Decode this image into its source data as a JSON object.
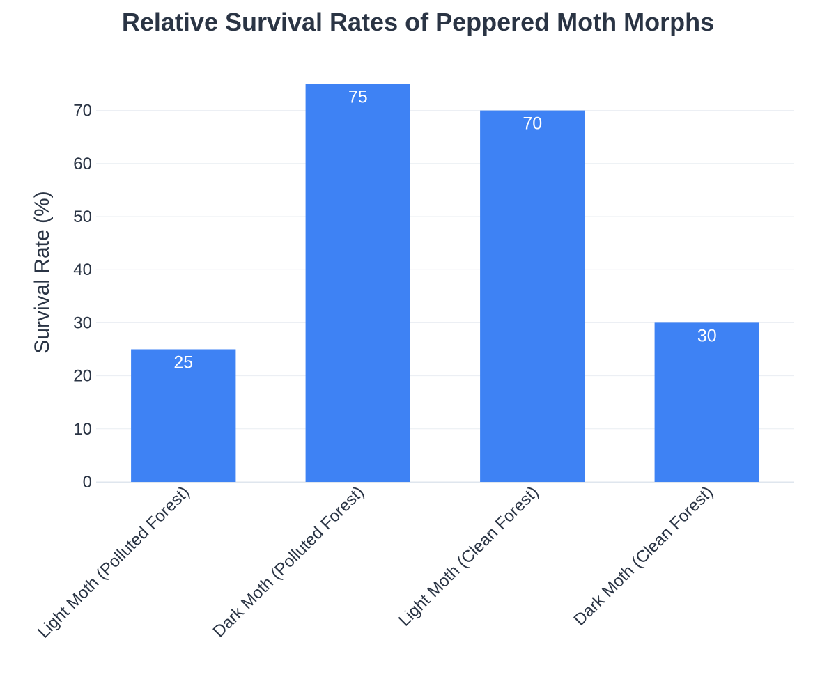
{
  "colors": {
    "bar": "#3e82f4",
    "text": "#2a3444",
    "grid": "#e9edf2",
    "axis_line": "#dfe6ee",
    "bar_label": "#ffffff"
  },
  "chart_data": {
    "type": "bar",
    "title": "Relative Survival Rates of Peppered Moth Morphs",
    "xlabel": "",
    "ylabel": "Survival Rate (%)",
    "categories": [
      "Light Moth (Polluted Forest)",
      "Dark Moth (Polluted Forest)",
      "Light Moth (Clean Forest)",
      "Dark Moth (Clean Forest)"
    ],
    "values": [
      25,
      75,
      70,
      30
    ],
    "data_labels": [
      "25",
      "75",
      "70",
      "30"
    ],
    "ylim": [
      0,
      75
    ],
    "yticks": [
      0,
      10,
      20,
      30,
      40,
      50,
      60,
      70
    ],
    "ytick_labels": [
      "0",
      "10",
      "20",
      "30",
      "40",
      "50",
      "60",
      "70"
    ],
    "grid": true,
    "legend": "none"
  }
}
